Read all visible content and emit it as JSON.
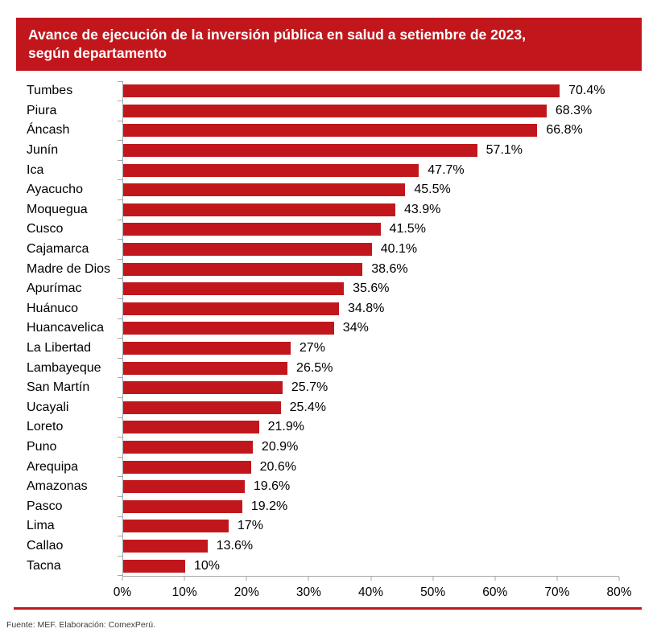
{
  "header": {
    "title": "Avance de ejecución de la inversión pública en salud a setiembre de 2023,\nsegún departamento"
  },
  "chart_data": {
    "type": "bar",
    "orientation": "horizontal",
    "title": "Avance de ejecución de la inversión pública en salud a setiembre de 2023, según departamento",
    "categories": [
      "Tumbes",
      "Piura",
      "Áncash",
      "Junín",
      "Ica",
      "Ayacucho",
      "Moquegua",
      "Cusco",
      "Cajamarca",
      "Madre de Dios",
      "Apurímac",
      "Huánuco",
      "Huancavelica",
      "La Libertad",
      "Lambayeque",
      "San Martín",
      "Ucayali",
      "Loreto",
      "Puno",
      "Arequipa",
      "Amazonas",
      "Pasco",
      "Lima",
      "Callao",
      "Tacna"
    ],
    "values": [
      70.4,
      68.3,
      66.8,
      57.1,
      47.7,
      45.5,
      43.9,
      41.5,
      40.1,
      38.6,
      35.6,
      34.8,
      34,
      27,
      26.5,
      25.7,
      25.4,
      21.9,
      20.9,
      20.6,
      19.6,
      19.2,
      17,
      13.6,
      10
    ],
    "value_labels": [
      "70.4%",
      "68.3%",
      "66.8%",
      "57.1%",
      "47.7%",
      "45.5%",
      "43.9%",
      "41.5%",
      "40.1%",
      "38.6%",
      "35.6%",
      "34.8%",
      "34%",
      "27%",
      "26.5%",
      "25.7%",
      "25.4%",
      "21.9%",
      "20.9%",
      "20.6%",
      "19.6%",
      "19.2%",
      "17%",
      "13.6%",
      "10%"
    ],
    "xlim": [
      0,
      80
    ],
    "xticks": [
      "0%",
      "10%",
      "20%",
      "30%",
      "40%",
      "50%",
      "60%",
      "70%",
      "80%"
    ],
    "grid": false,
    "legend": null,
    "bar_color": "#C1171C"
  },
  "footer": {
    "source": "Fuente: MEF. Elaboración: ComexPerú."
  },
  "colors": {
    "banner_bg": "#C1171C",
    "banner_text": "#FFFFFF",
    "bar": "#C1171C",
    "axis": "#A6A6A6",
    "label_text": "#000000",
    "divider": "#C1171C",
    "footer_text": "#3D3D3D"
  }
}
